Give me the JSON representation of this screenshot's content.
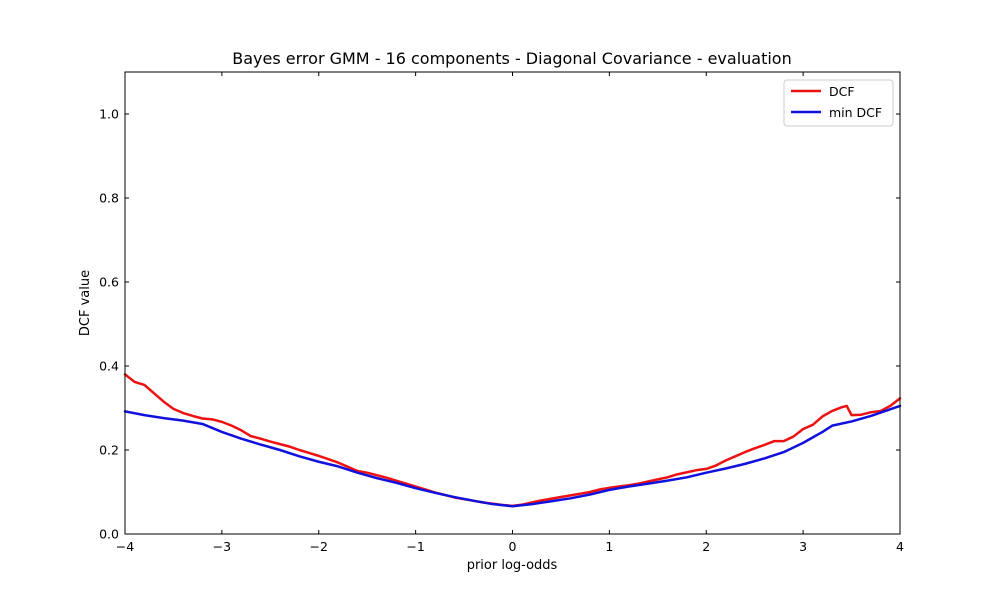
{
  "chart_data": {
    "type": "line",
    "title": "Bayes error GMM - 16 components - Diagonal Covariance - evaluation",
    "xlabel": "prior log-odds",
    "ylabel": "DCF value",
    "xlim": [
      -4,
      4
    ],
    "ylim": [
      0,
      1.1
    ],
    "xticks": [
      -4,
      -3,
      -2,
      -1,
      0,
      1,
      2,
      3,
      4
    ],
    "yticks": [
      0.0,
      0.2,
      0.4,
      0.6,
      0.8,
      1.0
    ],
    "xtick_labels": [
      "−4",
      "−3",
      "−2",
      "−1",
      "0",
      "1",
      "2",
      "3",
      "4"
    ],
    "ytick_labels": [
      "0.0",
      "0.2",
      "0.4",
      "0.6",
      "0.8",
      "1.0"
    ],
    "grid": false,
    "legend_position": "top-right",
    "series": [
      {
        "name": "DCF",
        "color": "#ee1111",
        "x": [
          -4.0,
          -3.9,
          -3.8,
          -3.7,
          -3.6,
          -3.5,
          -3.4,
          -3.3,
          -3.2,
          -3.1,
          -3.0,
          -2.9,
          -2.8,
          -2.7,
          -2.6,
          -2.5,
          -2.4,
          -2.3,
          -2.2,
          -2.1,
          -2.0,
          -1.9,
          -1.8,
          -1.7,
          -1.6,
          -1.5,
          -1.4,
          -1.3,
          -1.2,
          -1.1,
          -1.0,
          -0.9,
          -0.8,
          -0.7,
          -0.6,
          -0.5,
          -0.4,
          -0.3,
          -0.2,
          -0.1,
          0.0,
          0.1,
          0.2,
          0.3,
          0.4,
          0.5,
          0.6,
          0.7,
          0.8,
          0.9,
          1.0,
          1.1,
          1.2,
          1.3,
          1.4,
          1.5,
          1.6,
          1.7,
          1.8,
          1.9,
          2.0,
          2.1,
          2.2,
          2.3,
          2.4,
          2.5,
          2.6,
          2.7,
          2.8,
          2.9,
          3.0,
          3.1,
          3.2,
          3.3,
          3.4,
          3.45,
          3.5,
          3.6,
          3.7,
          3.8,
          3.9,
          4.0
        ],
        "values": [
          0.38,
          0.362,
          0.355,
          0.335,
          0.315,
          0.298,
          0.288,
          0.281,
          0.275,
          0.273,
          0.267,
          0.258,
          0.247,
          0.233,
          0.227,
          0.22,
          0.214,
          0.208,
          0.2,
          0.193,
          0.186,
          0.178,
          0.17,
          0.16,
          0.15,
          0.146,
          0.14,
          0.134,
          0.127,
          0.12,
          0.113,
          0.106,
          0.099,
          0.093,
          0.087,
          0.083,
          0.079,
          0.075,
          0.072,
          0.069,
          0.067,
          0.07,
          0.075,
          0.08,
          0.084,
          0.088,
          0.092,
          0.096,
          0.1,
          0.106,
          0.11,
          0.113,
          0.116,
          0.12,
          0.125,
          0.13,
          0.135,
          0.142,
          0.147,
          0.152,
          0.155,
          0.163,
          0.175,
          0.185,
          0.195,
          0.204,
          0.212,
          0.221,
          0.221,
          0.232,
          0.25,
          0.26,
          0.28,
          0.293,
          0.302,
          0.305,
          0.283,
          0.284,
          0.29,
          0.293,
          0.305,
          0.323
        ]
      },
      {
        "name": "min DCF",
        "color": "#1111dd",
        "x": [
          -4.0,
          -3.8,
          -3.6,
          -3.4,
          -3.2,
          -3.0,
          -2.8,
          -2.6,
          -2.4,
          -2.2,
          -2.0,
          -1.8,
          -1.6,
          -1.4,
          -1.2,
          -1.0,
          -0.8,
          -0.6,
          -0.4,
          -0.2,
          0.0,
          0.2,
          0.4,
          0.6,
          0.8,
          1.0,
          1.2,
          1.4,
          1.6,
          1.8,
          2.0,
          2.2,
          2.4,
          2.6,
          2.8,
          3.0,
          3.1,
          3.2,
          3.3,
          3.5,
          3.7,
          3.85,
          4.0
        ],
        "values": [
          0.292,
          0.283,
          0.276,
          0.27,
          0.262,
          0.243,
          0.227,
          0.213,
          0.2,
          0.185,
          0.172,
          0.161,
          0.146,
          0.133,
          0.122,
          0.109,
          0.098,
          0.088,
          0.079,
          0.071,
          0.066,
          0.071,
          0.078,
          0.085,
          0.094,
          0.105,
          0.113,
          0.12,
          0.127,
          0.135,
          0.146,
          0.156,
          0.167,
          0.18,
          0.195,
          0.217,
          0.23,
          0.243,
          0.258,
          0.268,
          0.281,
          0.293,
          0.305
        ]
      }
    ]
  }
}
